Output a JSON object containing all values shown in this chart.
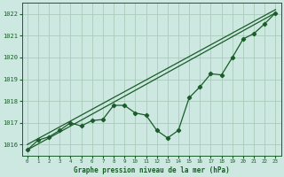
{
  "title": "Graphe pression niveau de la mer (hPa)",
  "background_color": "#cce8e0",
  "grid_color": "#aaccbb",
  "line_color": "#1a5c2a",
  "xlim": [
    -0.5,
    23.5
  ],
  "ylim": [
    1015.5,
    1022.5
  ],
  "yticks": [
    1016,
    1017,
    1018,
    1019,
    1020,
    1021,
    1022
  ],
  "xticks": [
    0,
    1,
    2,
    3,
    4,
    5,
    6,
    7,
    8,
    9,
    10,
    11,
    12,
    13,
    14,
    15,
    16,
    17,
    18,
    19,
    20,
    21,
    22,
    23
  ],
  "trend1_x": [
    0,
    23
  ],
  "trend1_y": [
    1015.75,
    1022.05
  ],
  "trend2_x": [
    0,
    23
  ],
  "trend2_y": [
    1016.0,
    1022.2
  ],
  "main_x": [
    0,
    1,
    2,
    3,
    4,
    5,
    6,
    7,
    8,
    9,
    10,
    11,
    12,
    13,
    14,
    15,
    16,
    17,
    18,
    19,
    20,
    21,
    22,
    23
  ],
  "main_y": [
    1015.75,
    1016.2,
    1016.35,
    1016.65,
    1017.0,
    1016.85,
    1017.1,
    1017.15,
    1017.8,
    1017.8,
    1017.45,
    1017.35,
    1016.65,
    1016.3,
    1016.65,
    1018.15,
    1018.65,
    1019.25,
    1019.2,
    1020.0,
    1020.85,
    1021.1,
    1021.55,
    1022.05
  ]
}
